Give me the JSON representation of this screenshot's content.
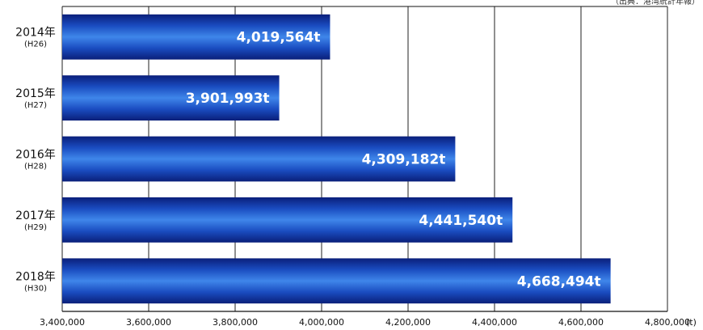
{
  "chart_data": {
    "type": "bar",
    "orientation": "horizontal",
    "source_note": "（出典：港湾統計年報）",
    "unit": "(t)",
    "categories": [
      {
        "year": "2014年",
        "era": "(H26)"
      },
      {
        "year": "2015年",
        "era": "(H27)"
      },
      {
        "year": "2016年",
        "era": "(H28)"
      },
      {
        "year": "2017年",
        "era": "(H29)"
      },
      {
        "year": "2018年",
        "era": "(H30)"
      }
    ],
    "values": [
      4019564,
      3901993,
      4309182,
      4441540,
      4668494
    ],
    "value_labels": [
      "4,019,564t",
      "3,901,993t",
      "4,309,182t",
      "4,441,540t",
      "4,668,494t"
    ],
    "xlim": [
      3400000,
      4800000
    ],
    "xticks": [
      3400000,
      3600000,
      3800000,
      4000000,
      4200000,
      4400000,
      4600000,
      4800000
    ],
    "xtick_labels": [
      "3,400,000",
      "3,600,000",
      "3,800,000",
      "4,000,000",
      "4,200,000",
      "4,400,000",
      "4,600,000",
      "4,800,000"
    ],
    "grid": true,
    "colors": {
      "bar_dark": "#0a1f7a",
      "bar_mid": "#1f5fd6",
      "bar_light": "#3f86ea",
      "bar_label": "#ffffff",
      "grid": "#222222",
      "axis": "#111111"
    }
  }
}
